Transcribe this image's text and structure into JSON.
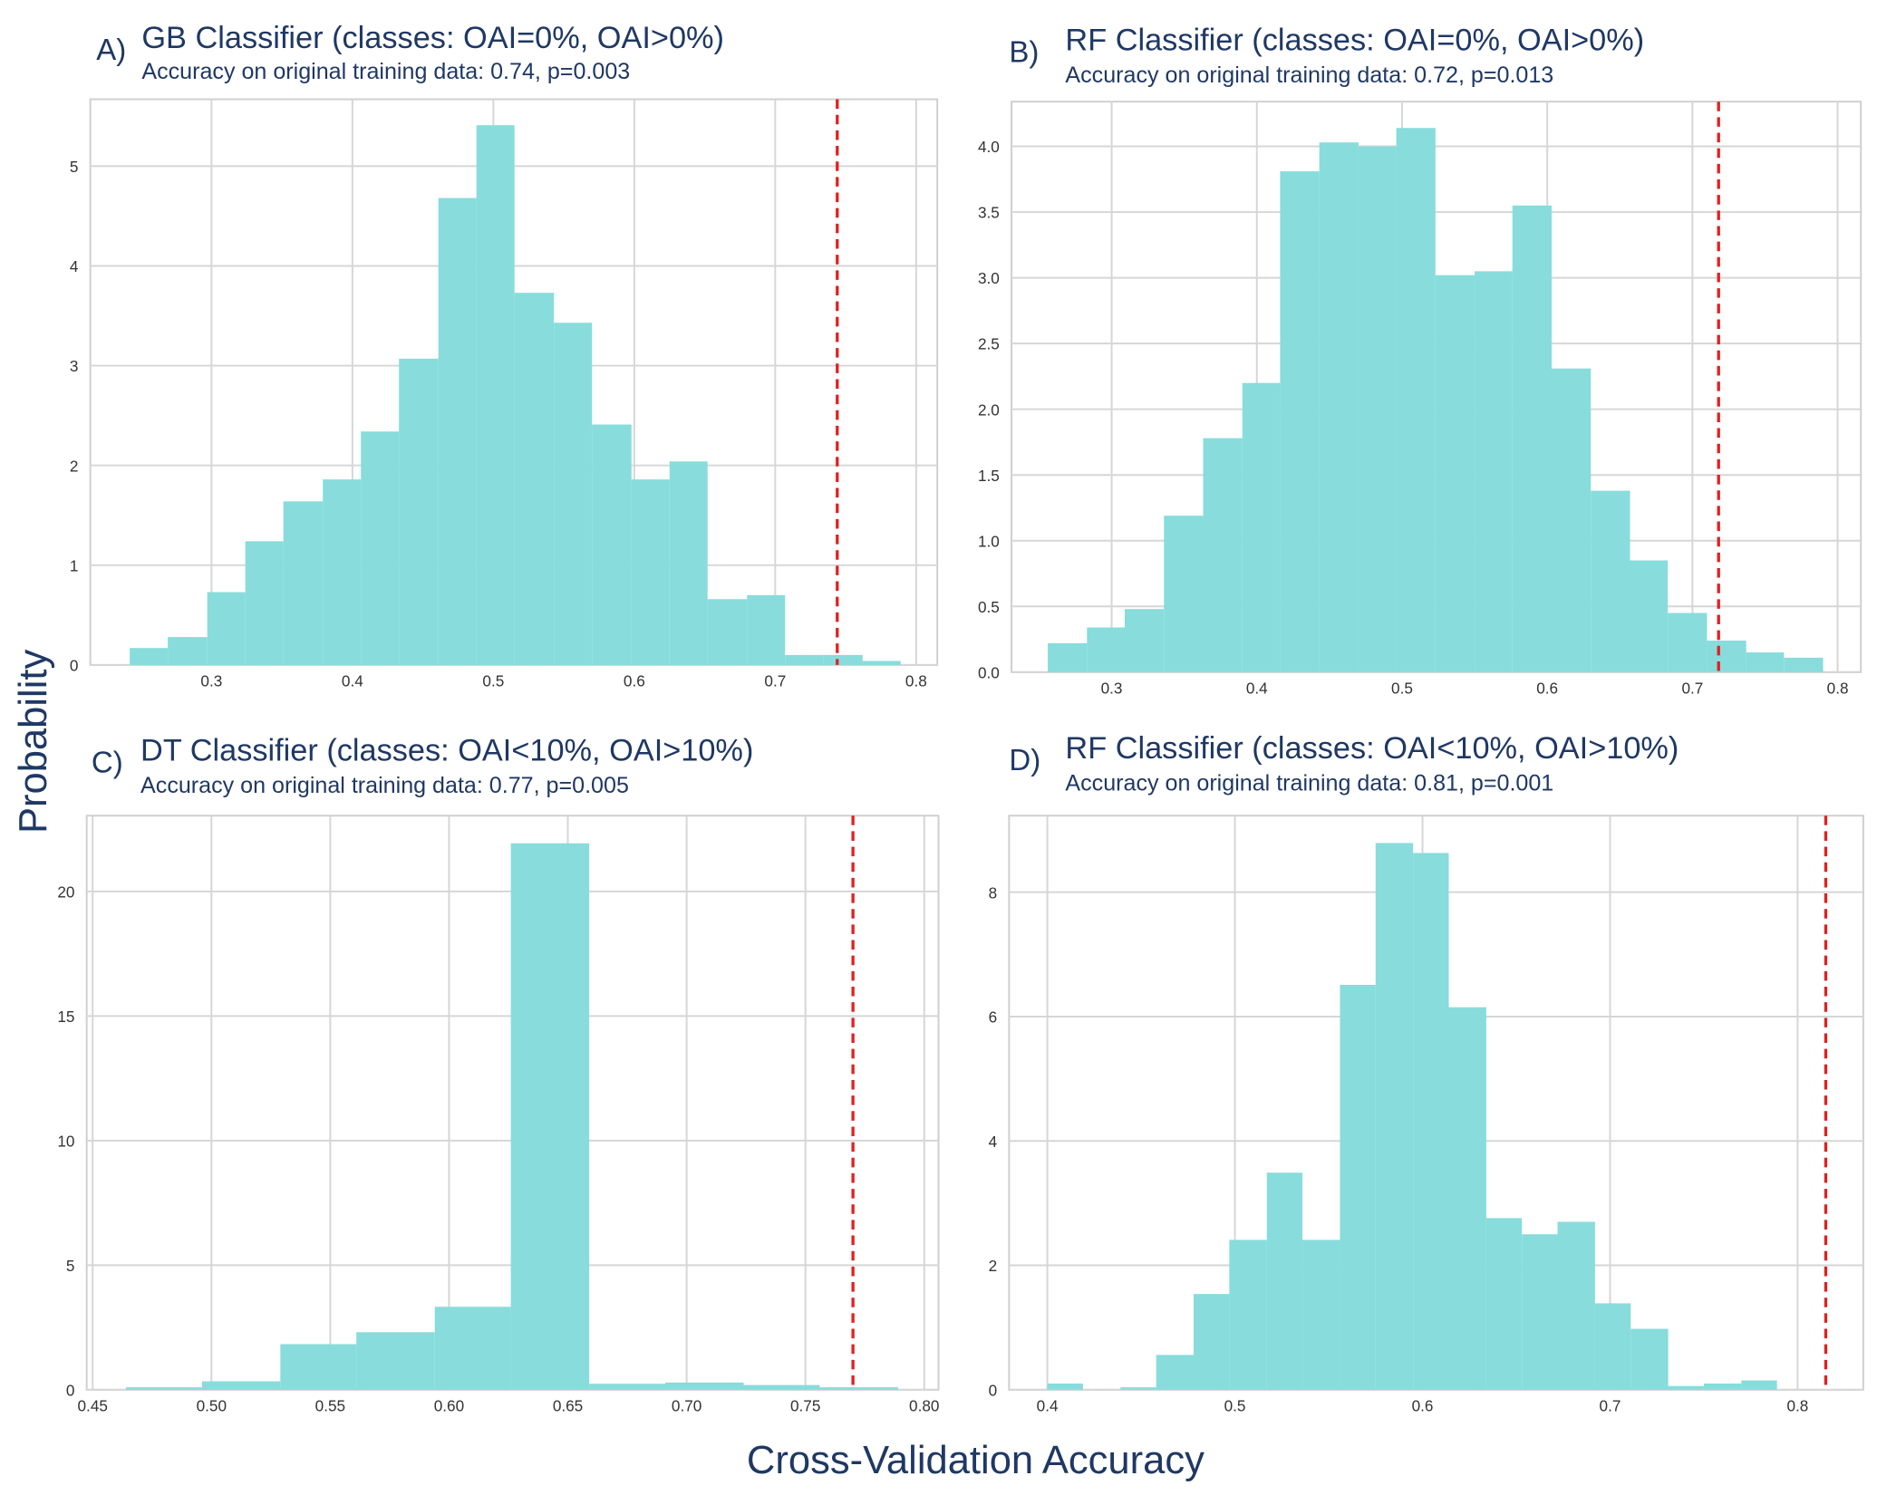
{
  "chart_data": [
    {
      "type": "histogram",
      "label": "A)",
      "title": "GB Classifier (classes: OAI=0%, OAI>0%)",
      "subtitle": "Accuracy on original training data: 0.74, p=0.003",
      "bins": [
        0.242,
        0.269,
        0.297,
        0.324,
        0.351,
        0.379,
        0.406,
        0.433,
        0.461,
        0.488,
        0.515,
        0.543,
        0.57,
        0.598,
        0.625,
        0.652,
        0.68,
        0.707,
        0.734,
        0.762,
        0.789
      ],
      "values": [
        0.17,
        0.28,
        0.73,
        1.24,
        1.64,
        1.86,
        2.34,
        3.07,
        4.68,
        5.41,
        3.73,
        3.43,
        2.41,
        1.86,
        2.04,
        0.66,
        0.7,
        0.1,
        0.1,
        0.04
      ],
      "color": "#88dcdc",
      "reference_line": {
        "value": 0.744,
        "color": "#e02020"
      },
      "xlim": [
        0.214,
        0.815
      ],
      "ylim": [
        0,
        5.67
      ],
      "xticks": [
        0.3,
        0.4,
        0.5,
        0.6,
        0.7,
        0.8
      ],
      "yticks": [
        0,
        1,
        2,
        3,
        4,
        5
      ],
      "grid": true
    },
    {
      "type": "histogram",
      "label": "B)",
      "title": "RF Classifier (classes: OAI=0%, OAI>0%)",
      "subtitle": "Accuracy on original training data: 0.72, p=0.013",
      "bins": [
        0.256,
        0.283,
        0.309,
        0.336,
        0.363,
        0.39,
        0.416,
        0.443,
        0.47,
        0.496,
        0.523,
        0.55,
        0.576,
        0.603,
        0.63,
        0.657,
        0.683,
        0.71,
        0.737,
        0.763,
        0.79
      ],
      "values": [
        0.22,
        0.34,
        0.48,
        1.19,
        1.78,
        2.2,
        3.81,
        4.03,
        4.0,
        4.14,
        3.02,
        3.05,
        3.55,
        2.31,
        1.38,
        0.85,
        0.45,
        0.24,
        0.15,
        0.11
      ],
      "color": "#88dcdc",
      "reference_line": {
        "value": 0.718,
        "color": "#e02020"
      },
      "xlim": [
        0.231,
        0.816
      ],
      "ylim": [
        0,
        4.34
      ],
      "xticks": [
        0.3,
        0.4,
        0.5,
        0.6,
        0.7,
        0.8
      ],
      "yticks": [
        {
          "value": 0,
          "label": "0.0"
        },
        0.5,
        {
          "value": 1,
          "label": "1.0"
        },
        1.5,
        {
          "value": 2,
          "label": "2.0"
        },
        2.5,
        {
          "value": 3,
          "label": "3.0"
        },
        3.5,
        {
          "value": 4,
          "label": "4.0"
        }
      ],
      "grid": true
    },
    {
      "type": "histogram",
      "label": "C)",
      "title": "DT Classifier (classes: OAI<10%, OAI>10%)",
      "subtitle": "Accuracy on original training data: 0.77, p=0.005",
      "bins": [
        0.464,
        0.496,
        0.529,
        0.561,
        0.594,
        0.626,
        0.659,
        0.691,
        0.724,
        0.756,
        0.789
      ],
      "values": [
        0.1,
        0.34,
        1.83,
        2.31,
        3.33,
        21.93,
        0.24,
        0.29,
        0.19,
        0.1
      ],
      "color": "#88dcdc",
      "reference_line": {
        "value": 0.77,
        "color": "#e02020"
      },
      "xlim": [
        0.4475,
        0.806
      ],
      "ylim": [
        0,
        23.04
      ],
      "xticks": [
        0.45,
        {
          "value": 0.5,
          "label": "0.50"
        },
        0.55,
        {
          "value": 0.6,
          "label": "0.60"
        },
        0.65,
        {
          "value": 0.7,
          "label": "0.70"
        },
        0.75,
        {
          "value": 0.8,
          "label": "0.80"
        }
      ],
      "yticks": [
        0,
        5,
        10,
        15,
        20
      ],
      "grid": true
    },
    {
      "type": "histogram",
      "label": "D)",
      "title": "RF Classifier (classes: OAI<10%, OAI>10%)",
      "subtitle": "Accuracy on original training data: 0.81, p=0.001",
      "bins": [
        0.4,
        0.419,
        0.439,
        0.458,
        0.478,
        0.497,
        0.517,
        0.536,
        0.556,
        0.575,
        0.595,
        0.614,
        0.634,
        0.653,
        0.672,
        0.692,
        0.711,
        0.731,
        0.75,
        0.77,
        0.789
      ],
      "values": [
        0.1,
        0,
        0.04,
        0.56,
        1.54,
        2.41,
        3.49,
        2.41,
        6.51,
        8.79,
        8.63,
        6.15,
        2.76,
        2.5,
        2.7,
        1.39,
        0.98,
        0.06,
        0.1,
        0.15
      ],
      "color": "#88dcdc",
      "reference_line": {
        "value": 0.815,
        "color": "#e02020"
      },
      "xlim": [
        0.3796,
        0.835
      ],
      "ylim": [
        0,
        9.23
      ],
      "xticks": [
        0.4,
        0.5,
        0.6,
        0.7,
        0.8
      ],
      "yticks": [
        0,
        2,
        4,
        6,
        8
      ],
      "grid": true
    }
  ],
  "shared": {
    "ylabel": "Probability",
    "xlabel": "Cross-Validation Accuracy"
  }
}
